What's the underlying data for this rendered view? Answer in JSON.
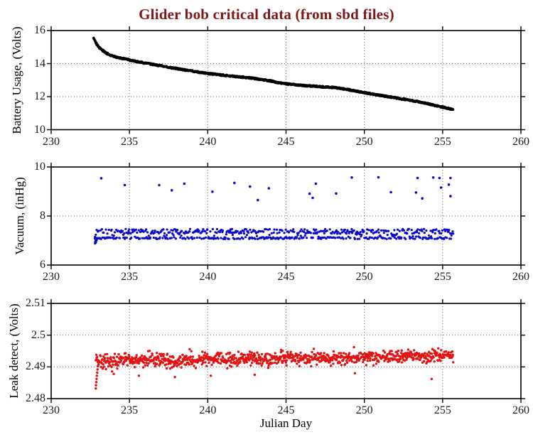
{
  "figure": {
    "title": "Glider bob critical data (from sbd files)",
    "title_color": "#811617",
    "xlabel": "Julian Day",
    "background": "#ffffff",
    "axis_color": "#000000",
    "grid_color": "#606060",
    "xtick_labels": [
      "230",
      "235",
      "240",
      "245",
      "250",
      "255",
      "260"
    ]
  },
  "chart_data": [
    {
      "type": "scatter",
      "series_name": "battery-usage",
      "ylabel": "Battery Usage, (Volts)",
      "xlabel": "",
      "color": "#000000",
      "xlim": [
        230,
        260
      ],
      "ylim": [
        10,
        16
      ],
      "xticks": [
        230,
        235,
        240,
        245,
        250,
        255,
        260
      ],
      "yticks": [
        10,
        12,
        14,
        16
      ],
      "ytick_labels": [
        "10",
        "12",
        "14",
        "16"
      ],
      "grid": true,
      "anchors": [
        [
          232.7,
          15.55
        ],
        [
          232.85,
          15.3
        ],
        [
          233.0,
          15.05
        ],
        [
          233.2,
          14.85
        ],
        [
          233.5,
          14.65
        ],
        [
          233.8,
          14.5
        ],
        [
          234.2,
          14.38
        ],
        [
          234.6,
          14.3
        ],
        [
          235.0,
          14.22
        ],
        [
          235.5,
          14.12
        ],
        [
          236.0,
          14.03
        ],
        [
          236.5,
          13.95
        ],
        [
          237.0,
          13.87
        ],
        [
          237.5,
          13.78
        ],
        [
          238.0,
          13.7
        ],
        [
          238.5,
          13.62
        ],
        [
          239.0,
          13.55
        ],
        [
          239.5,
          13.47
        ],
        [
          240.0,
          13.4
        ],
        [
          240.5,
          13.35
        ],
        [
          241.0,
          13.3
        ],
        [
          241.5,
          13.25
        ],
        [
          242.0,
          13.2
        ],
        [
          242.5,
          13.15
        ],
        [
          243.0,
          13.1
        ],
        [
          243.5,
          13.02
        ],
        [
          244.0,
          12.95
        ],
        [
          244.5,
          12.85
        ],
        [
          245.0,
          12.78
        ],
        [
          245.5,
          12.73
        ],
        [
          246.0,
          12.68
        ],
        [
          246.5,
          12.65
        ],
        [
          247.0,
          12.62
        ],
        [
          247.5,
          12.58
        ],
        [
          248.0,
          12.55
        ],
        [
          248.5,
          12.5
        ],
        [
          249.0,
          12.42
        ],
        [
          249.5,
          12.33
        ],
        [
          250.0,
          12.24
        ],
        [
          250.5,
          12.16
        ],
        [
          251.0,
          12.08
        ],
        [
          251.5,
          12.0
        ],
        [
          252.0,
          11.93
        ],
        [
          252.5,
          11.85
        ],
        [
          253.0,
          11.77
        ],
        [
          253.5,
          11.68
        ],
        [
          254.0,
          11.58
        ],
        [
          254.5,
          11.47
        ],
        [
          255.0,
          11.37
        ],
        [
          255.4,
          11.27
        ],
        [
          255.7,
          11.2
        ]
      ]
    },
    {
      "type": "scatter",
      "series_name": "vacuum",
      "ylabel": "Vacuum, (inHg)",
      "xlabel": "",
      "color": "#0a0acd",
      "xlim": [
        230,
        260
      ],
      "ylim": [
        6,
        10
      ],
      "xticks": [
        230,
        235,
        240,
        245,
        250,
        255,
        260
      ],
      "yticks": [
        6,
        8,
        10
      ],
      "ytick_labels": [
        "6",
        "8",
        "10"
      ],
      "grid": true,
      "band": {
        "x_start": 232.8,
        "x_end": 255.7,
        "lower_line": [
          7.06,
          7.14
        ],
        "upper_band": [
          7.28,
          7.47
        ],
        "mid_band": [
          7.15,
          7.3
        ],
        "lower_frac": 0.42,
        "upper_frac": 0.5,
        "mid_frac": 0.08
      },
      "start_scatter": [
        [
          232.8,
          6.88
        ],
        [
          232.82,
          6.95
        ],
        [
          232.84,
          7.02
        ],
        [
          232.8,
          7.15
        ],
        [
          232.86,
          6.92
        ],
        [
          232.9,
          7.0
        ]
      ],
      "outliers": [
        [
          233.2,
          9.54
        ],
        [
          234.7,
          9.26
        ],
        [
          236.9,
          9.26
        ],
        [
          237.7,
          9.05
        ],
        [
          238.5,
          9.32
        ],
        [
          240.3,
          8.99
        ],
        [
          241.7,
          9.35
        ],
        [
          242.7,
          9.2
        ],
        [
          243.2,
          8.65
        ],
        [
          243.9,
          9.13
        ],
        [
          246.5,
          8.91
        ],
        [
          246.9,
          9.32
        ],
        [
          246.7,
          8.74
        ],
        [
          248.2,
          8.92
        ],
        [
          249.2,
          9.57
        ],
        [
          250.9,
          9.58
        ],
        [
          251.7,
          8.97
        ],
        [
          253.4,
          9.55
        ],
        [
          253.3,
          8.96
        ],
        [
          253.7,
          8.72
        ],
        [
          254.4,
          9.57
        ],
        [
          254.8,
          9.55
        ],
        [
          254.9,
          9.16
        ],
        [
          255.4,
          9.28
        ],
        [
          255.5,
          9.55
        ],
        [
          255.5,
          8.81
        ]
      ]
    },
    {
      "type": "scatter",
      "series_name": "leak-detect",
      "ylabel": "Leak detect, (Volts)",
      "xlabel": "Julian Day",
      "color": "#e51212",
      "xlim": [
        230,
        260
      ],
      "ylim": [
        2.48,
        2.51
      ],
      "xticks": [
        230,
        235,
        240,
        245,
        250,
        255,
        260
      ],
      "yticks": [
        2.48,
        2.49,
        2.5,
        2.51
      ],
      "ytick_labels": [
        "2.48",
        "2.49",
        "2.5",
        "2.51"
      ],
      "grid": true,
      "band": {
        "x_start": 232.85,
        "x_end": 255.7,
        "center_start": 2.492,
        "center_end": 2.4934,
        "sigma": 0.001
      },
      "start_tail": [
        [
          232.85,
          2.4832
        ],
        [
          232.86,
          2.4842
        ],
        [
          232.88,
          2.4852
        ],
        [
          232.9,
          2.4862
        ],
        [
          232.92,
          2.4872
        ],
        [
          232.94,
          2.4882
        ],
        [
          232.96,
          2.4892
        ],
        [
          232.98,
          2.4902
        ]
      ],
      "low_outliers": [
        [
          234.0,
          2.4878
        ],
        [
          235.6,
          2.4872
        ],
        [
          237.9,
          2.4868
        ],
        [
          240.2,
          2.4872
        ],
        [
          243.0,
          2.4875
        ],
        [
          249.4,
          2.488
        ],
        [
          254.3,
          2.4862
        ]
      ]
    }
  ]
}
